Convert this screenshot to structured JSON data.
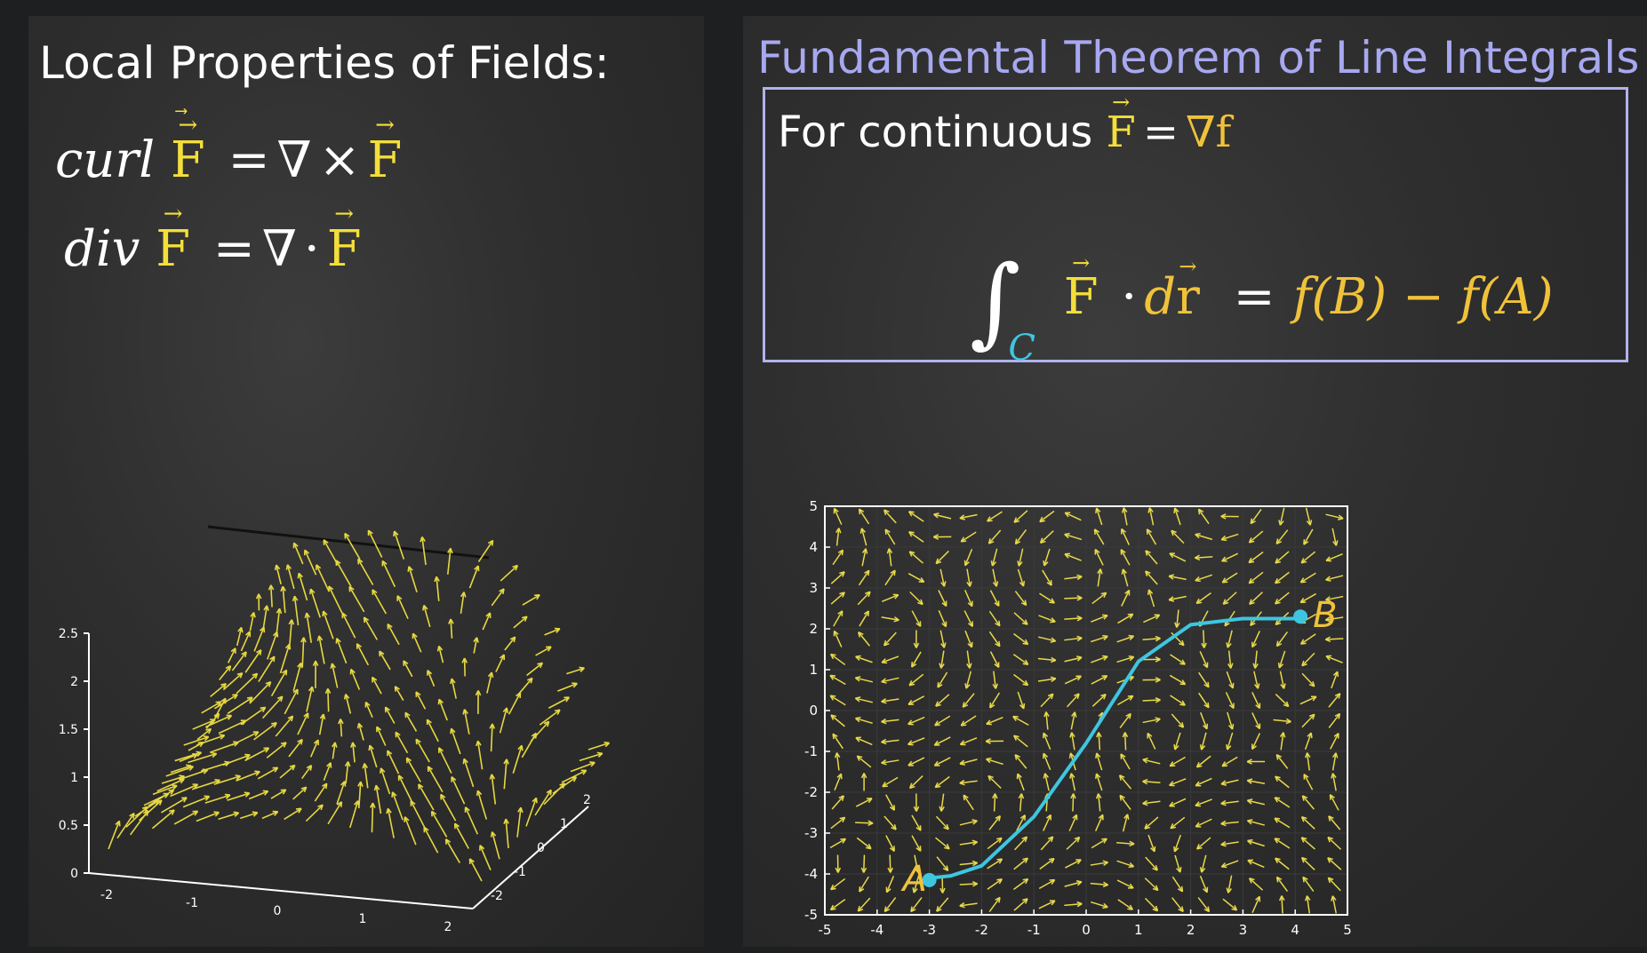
{
  "left_panel": {
    "title": "Local Properties of Fields:",
    "curl_eq": {
      "lhs_op": "curl",
      "vec": "F",
      "eq": "=",
      "nabla": "∇",
      "cross": "×",
      "rhs_vec": "F"
    },
    "div_eq": {
      "lhs_op": "div",
      "vec": "F",
      "eq": "=",
      "nabla": "∇",
      "dot": "·",
      "rhs_vec": "F"
    },
    "plot3d": {
      "z_ticks": [
        "2.5",
        "2",
        "1.5",
        "1",
        "0.5",
        "0"
      ],
      "x_ticks": [
        "-2",
        "-1",
        "0",
        "1",
        "2"
      ],
      "y_ticks": [
        "-2",
        "-1",
        "0",
        "1",
        "2"
      ]
    }
  },
  "right_panel": {
    "title": "Fundamental Theorem of Line Integrals",
    "box": {
      "line1_text": "For continuous",
      "line1_vec": "F",
      "line1_eq": "=",
      "line1_grad": "∇f",
      "integral_sub": "C",
      "integrand_vec": "F",
      "integrand_dot": "·",
      "integrand_d": "d",
      "integrand_r": "r",
      "eq": "=",
      "rhs": "f(B) − f(A)"
    }
  },
  "chart_data": {
    "type": "scatter",
    "xlim": [
      -5,
      5
    ],
    "ylim": [
      -5,
      5
    ],
    "x_ticks": [
      "-5",
      "-4",
      "-3",
      "-2",
      "-1",
      "0",
      "1",
      "2",
      "3",
      "4",
      "5"
    ],
    "y_ticks": [
      "5",
      "4",
      "3",
      "2",
      "1",
      "0",
      "-1",
      "-2",
      "-3",
      "-4",
      "-5"
    ],
    "curve": {
      "x": [
        -3,
        -2.6,
        -2,
        -1,
        0,
        1,
        2,
        3,
        4
      ],
      "y": [
        -4.1,
        -4.05,
        -3.8,
        -2.6,
        -0.8,
        1.2,
        2.1,
        2.25,
        2.25
      ]
    },
    "points": [
      {
        "label": "A",
        "x": -3,
        "y": -4.15
      },
      {
        "label": "B",
        "x": 4.1,
        "y": 2.3
      }
    ],
    "colors": {
      "curve": "#3ec6e0",
      "arrows": "#e8d94a",
      "labels": "#f0c23a",
      "axes": "#ffffff"
    }
  }
}
